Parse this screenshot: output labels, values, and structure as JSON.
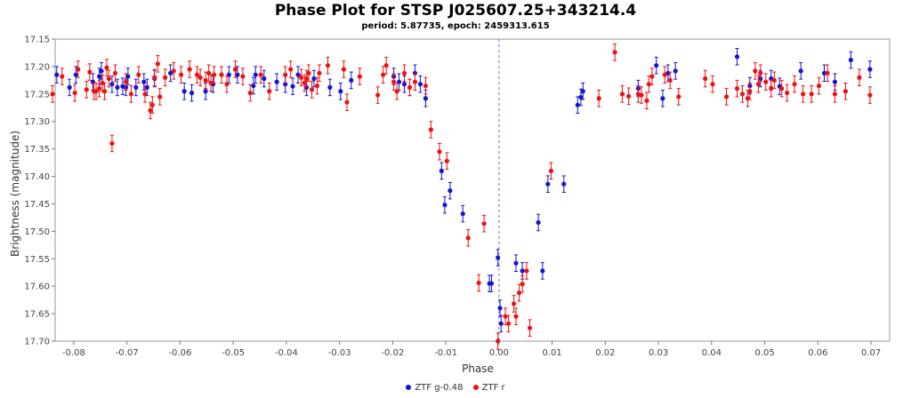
{
  "chart_data": {
    "type": "scatter",
    "title": "Phase Plot for STSP J025607.25+343214.4",
    "subtitle": "period: 5.87735, epoch: 2459313.615",
    "xlabel": "Phase",
    "ylabel": "Brightness (magnitude)",
    "xlim": [
      -0.0835,
      0.0735
    ],
    "ylim": [
      17.7,
      17.15
    ],
    "y_inverted": true,
    "x_ticks": [
      -0.08,
      -0.07,
      -0.06,
      -0.05,
      -0.04,
      -0.03,
      -0.02,
      -0.01,
      0.0,
      0.01,
      0.02,
      0.03,
      0.04,
      0.05,
      0.06,
      0.07
    ],
    "x_tick_labels": [
      "-0.08",
      "-0.07",
      "-0.06",
      "-0.05",
      "-0.04",
      "-0.03",
      "-0.02",
      "-0.01",
      "0.00",
      "0.01",
      "0.02",
      "0.03",
      "0.04",
      "0.05",
      "0.06",
      "0.07"
    ],
    "y_ticks": [
      17.15,
      17.2,
      17.25,
      17.3,
      17.35,
      17.4,
      17.45,
      17.5,
      17.55,
      17.6,
      17.65,
      17.7
    ],
    "y_tick_labels": [
      "17.15",
      "17.20",
      "17.25",
      "17.30",
      "17.35",
      "17.40",
      "17.45",
      "17.50",
      "17.55",
      "17.60",
      "17.65",
      "17.70"
    ],
    "vertical_line_x": 0.0,
    "grid": false,
    "legend_position": "bottom-center",
    "error_bar": 0.015,
    "series": [
      {
        "name": "ZTF g-0.48",
        "color": "#1414d2",
        "points": [
          [
            -0.0832,
            17.215
          ],
          [
            -0.0808,
            17.238
          ],
          [
            -0.0796,
            17.215
          ],
          [
            -0.0764,
            17.228
          ],
          [
            -0.0752,
            17.218
          ],
          [
            -0.0748,
            17.208
          ],
          [
            -0.0728,
            17.232
          ],
          [
            -0.0718,
            17.238
          ],
          [
            -0.0708,
            17.236
          ],
          [
            -0.0702,
            17.238
          ],
          [
            -0.0698,
            17.218
          ],
          [
            -0.0683,
            17.238
          ],
          [
            -0.0668,
            17.228
          ],
          [
            -0.0662,
            17.238
          ],
          [
            -0.0648,
            17.222
          ],
          [
            -0.0618,
            17.212
          ],
          [
            -0.0592,
            17.245
          ],
          [
            -0.0578,
            17.248
          ],
          [
            -0.0552,
            17.245
          ],
          [
            -0.0538,
            17.232
          ],
          [
            -0.0508,
            17.215
          ],
          [
            -0.0492,
            17.215
          ],
          [
            -0.0462,
            17.235
          ],
          [
            -0.0458,
            17.215
          ],
          [
            -0.0442,
            17.222
          ],
          [
            -0.0418,
            17.228
          ],
          [
            -0.0402,
            17.232
          ],
          [
            -0.0388,
            17.236
          ],
          [
            -0.0378,
            17.215
          ],
          [
            -0.0362,
            17.238
          ],
          [
            -0.0348,
            17.222
          ],
          [
            -0.0318,
            17.238
          ],
          [
            -0.0298,
            17.245
          ],
          [
            -0.0278,
            17.225
          ],
          [
            -0.0198,
            17.218
          ],
          [
            -0.0188,
            17.228
          ],
          [
            -0.0178,
            17.232
          ],
          [
            -0.0168,
            17.238
          ],
          [
            -0.0158,
            17.212
          ],
          [
            -0.0148,
            17.232
          ],
          [
            -0.0138,
            17.258
          ],
          [
            -0.0108,
            17.39
          ],
          [
            -0.0102,
            17.452
          ],
          [
            -0.0092,
            17.426
          ],
          [
            -0.0068,
            17.468
          ],
          [
            -0.0018,
            17.595
          ],
          [
            -0.0014,
            17.595
          ],
          [
            -0.0002,
            17.548
          ],
          [
            0.0002,
            17.64
          ],
          [
            0.0004,
            17.668
          ],
          [
            0.0032,
            17.558
          ],
          [
            0.0044,
            17.572
          ],
          [
            0.0074,
            17.484
          ],
          [
            0.0082,
            17.572
          ],
          [
            0.0092,
            17.414
          ],
          [
            0.0122,
            17.414
          ],
          [
            0.0148,
            17.27
          ],
          [
            0.0154,
            17.256
          ],
          [
            0.0158,
            17.245
          ],
          [
            0.0262,
            17.24
          ],
          [
            0.0296,
            17.198
          ],
          [
            0.0308,
            17.258
          ],
          [
            0.0318,
            17.212
          ],
          [
            0.0332,
            17.208
          ],
          [
            0.0448,
            17.182
          ],
          [
            0.0472,
            17.235
          ],
          [
            0.0492,
            17.222
          ],
          [
            0.0512,
            17.222
          ],
          [
            0.0528,
            17.236
          ],
          [
            0.0568,
            17.208
          ],
          [
            0.0612,
            17.212
          ],
          [
            0.0632,
            17.228
          ],
          [
            0.0662,
            17.188
          ],
          [
            0.0698,
            17.205
          ]
        ]
      },
      {
        "name": "ZTF r",
        "color": "#ee1111",
        "points": [
          [
            -0.084,
            17.25
          ],
          [
            -0.0822,
            17.218
          ],
          [
            -0.0798,
            17.248
          ],
          [
            -0.0792,
            17.205
          ],
          [
            -0.0776,
            17.242
          ],
          [
            -0.077,
            17.21
          ],
          [
            -0.0762,
            17.245
          ],
          [
            -0.0758,
            17.245
          ],
          [
            -0.0752,
            17.24
          ],
          [
            -0.0746,
            17.23
          ],
          [
            -0.0742,
            17.245
          ],
          [
            -0.0738,
            17.202
          ],
          [
            -0.0734,
            17.222
          ],
          [
            -0.0728,
            17.34
          ],
          [
            -0.0722,
            17.212
          ],
          [
            -0.0702,
            17.228
          ],
          [
            -0.0692,
            17.25
          ],
          [
            -0.0678,
            17.215
          ],
          [
            -0.0666,
            17.25
          ],
          [
            -0.0656,
            17.28
          ],
          [
            -0.0652,
            17.27
          ],
          [
            -0.0648,
            17.22
          ],
          [
            -0.0642,
            17.195
          ],
          [
            -0.0638,
            17.255
          ],
          [
            -0.0628,
            17.22
          ],
          [
            -0.0612,
            17.208
          ],
          [
            -0.0598,
            17.215
          ],
          [
            -0.0582,
            17.205
          ],
          [
            -0.0568,
            17.215
          ],
          [
            -0.0562,
            17.22
          ],
          [
            -0.0552,
            17.225
          ],
          [
            -0.0546,
            17.212
          ],
          [
            -0.0542,
            17.23
          ],
          [
            -0.0536,
            17.215
          ],
          [
            -0.0522,
            17.215
          ],
          [
            -0.0512,
            17.232
          ],
          [
            -0.0496,
            17.205
          ],
          [
            -0.0482,
            17.218
          ],
          [
            -0.0468,
            17.248
          ],
          [
            -0.0448,
            17.215
          ],
          [
            -0.0432,
            17.245
          ],
          [
            -0.0402,
            17.215
          ],
          [
            -0.0392,
            17.205
          ],
          [
            -0.0372,
            17.22
          ],
          [
            -0.0366,
            17.23
          ],
          [
            -0.0362,
            17.222
          ],
          [
            -0.0358,
            17.212
          ],
          [
            -0.0352,
            17.242
          ],
          [
            -0.0342,
            17.235
          ],
          [
            -0.0338,
            17.212
          ],
          [
            -0.0322,
            17.198
          ],
          [
            -0.0292,
            17.205
          ],
          [
            -0.0286,
            17.265
          ],
          [
            -0.0262,
            17.218
          ],
          [
            -0.0228,
            17.252
          ],
          [
            -0.0218,
            17.215
          ],
          [
            -0.0212,
            17.198
          ],
          [
            -0.0198,
            17.228
          ],
          [
            -0.0192,
            17.245
          ],
          [
            -0.0178,
            17.212
          ],
          [
            -0.0168,
            17.238
          ],
          [
            -0.0158,
            17.228
          ],
          [
            -0.0138,
            17.235
          ],
          [
            -0.0128,
            17.315
          ],
          [
            -0.0112,
            17.355
          ],
          [
            -0.0098,
            17.372
          ],
          [
            -0.0058,
            17.512
          ],
          [
            -0.0038,
            17.594
          ],
          [
            -0.0028,
            17.486
          ],
          [
            -0.0002,
            17.7
          ],
          [
            0.0012,
            17.655
          ],
          [
            0.0018,
            17.668
          ],
          [
            0.0028,
            17.632
          ],
          [
            0.0032,
            17.655
          ],
          [
            0.0038,
            17.612
          ],
          [
            0.0044,
            17.596
          ],
          [
            0.0052,
            17.572
          ],
          [
            0.0058,
            17.676
          ],
          [
            0.0098,
            17.39
          ],
          [
            0.0188,
            17.258
          ],
          [
            0.0218,
            17.174
          ],
          [
            0.0232,
            17.25
          ],
          [
            0.0244,
            17.254
          ],
          [
            0.0262,
            17.25
          ],
          [
            0.0268,
            17.252
          ],
          [
            0.0278,
            17.262
          ],
          [
            0.0282,
            17.232
          ],
          [
            0.0288,
            17.218
          ],
          [
            0.0312,
            17.215
          ],
          [
            0.0322,
            17.225
          ],
          [
            0.0338,
            17.255
          ],
          [
            0.0388,
            17.222
          ],
          [
            0.0402,
            17.232
          ],
          [
            0.0428,
            17.255
          ],
          [
            0.0448,
            17.24
          ],
          [
            0.0458,
            17.25
          ],
          [
            0.0468,
            17.258
          ],
          [
            0.0472,
            17.245
          ],
          [
            0.0482,
            17.208
          ],
          [
            0.0488,
            17.232
          ],
          [
            0.0492,
            17.212
          ],
          [
            0.0502,
            17.228
          ],
          [
            0.0512,
            17.24
          ],
          [
            0.0518,
            17.225
          ],
          [
            0.0532,
            17.24
          ],
          [
            0.0542,
            17.248
          ],
          [
            0.0556,
            17.232
          ],
          [
            0.0572,
            17.25
          ],
          [
            0.0588,
            17.25
          ],
          [
            0.0602,
            17.235
          ],
          [
            0.0618,
            17.212
          ],
          [
            0.0632,
            17.25
          ],
          [
            0.0652,
            17.245
          ],
          [
            0.0678,
            17.22
          ],
          [
            0.0698,
            17.252
          ]
        ]
      }
    ]
  }
}
